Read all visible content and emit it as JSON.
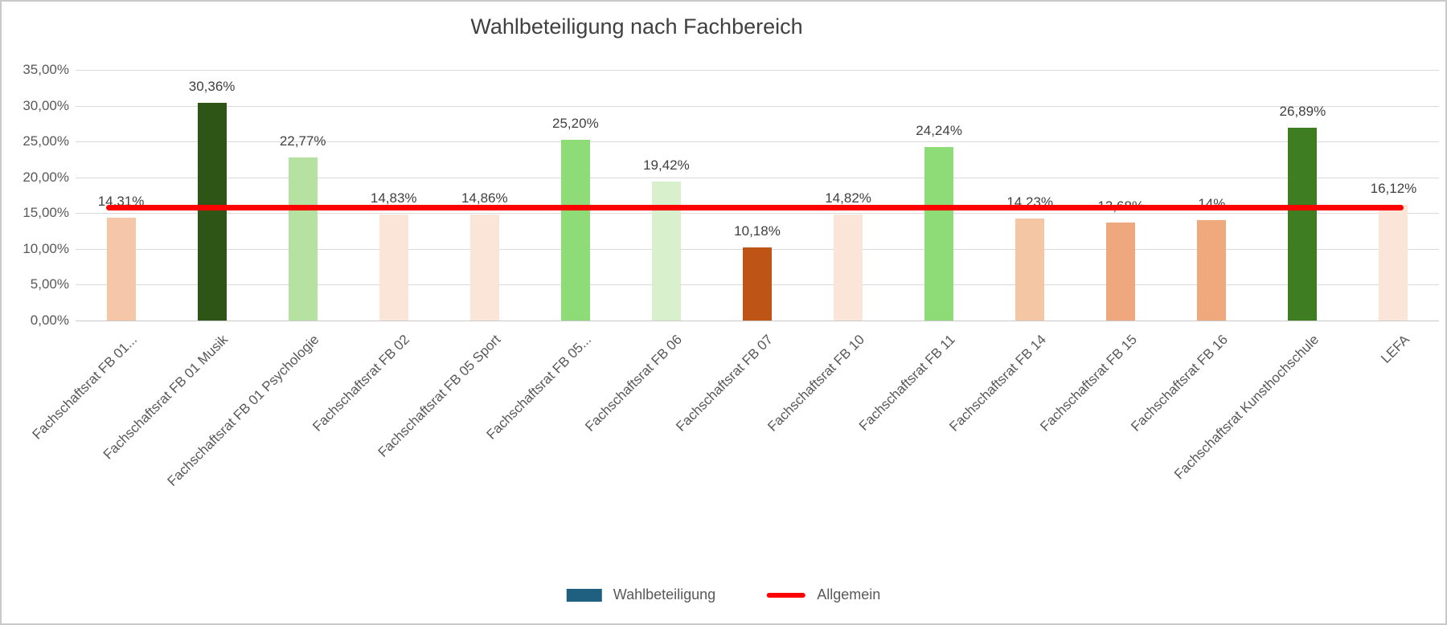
{
  "title": "Wahlbeteiligung nach Fachbereich",
  "y_axis": {
    "min": 0,
    "max": 35,
    "step": 5,
    "tick_labels": [
      "0,00%",
      "5,00%",
      "10,00%",
      "15,00%",
      "20,00%",
      "25,00%",
      "30,00%",
      "35,00%"
    ]
  },
  "legend": {
    "series_label": "Wahlbeteiligung",
    "series_color": "#1f6080",
    "line_label": "Allgemein",
    "line_color": "#ff0000"
  },
  "chart_data": {
    "type": "bar",
    "title": "Wahlbeteiligung nach Fachbereich",
    "categories": [
      "Fachschaftsrat FB 01...",
      "Fachschaftsrat FB 01 Musik",
      "Fachschaftsrat FB 01 Psychologie",
      "Fachschaftsrat FB 02",
      "Fachschaftsrat FB 05 Sport",
      "Fachschaftsrat FB 05...",
      "Fachschaftsrat FB 06",
      "Fachschaftsrat FB 07",
      "Fachschaftsrat FB 10",
      "Fachschaftsrat FB 11",
      "Fachschaftsrat FB 14",
      "Fachschaftsrat FB 15",
      "Fachschaftsrat FB 16",
      "Fachschaftsrat Kunsthochschule",
      "LEFA"
    ],
    "series": [
      {
        "name": "Wahlbeteiligung",
        "values": [
          14.31,
          30.36,
          22.77,
          14.83,
          14.86,
          25.2,
          19.42,
          10.18,
          14.82,
          24.24,
          14.23,
          13.68,
          14.0,
          26.89,
          16.12
        ],
        "labels": [
          "14,31%",
          "30,36%",
          "22,77%",
          "14,83%",
          "14,86%",
          "25,20%",
          "19,42%",
          "10,18%",
          "14,82%",
          "24,24%",
          "14,23%",
          "13,68%",
          "14%",
          "26,89%",
          "16,12%"
        ],
        "bar_colors": [
          "#f6c6a8",
          "#2e5416",
          "#b5e2a0",
          "#fbe5d8",
          "#fbe5d8",
          "#8ddc77",
          "#d9f0cc",
          "#bf5417",
          "#fbe5d8",
          "#8ddc78",
          "#f4c6a4",
          "#efa87d",
          "#f0a87d",
          "#3e7d22",
          "#fbe5d8"
        ]
      },
      {
        "name": "Allgemein",
        "type": "line",
        "value": 15.8,
        "color": "#ff0000"
      }
    ],
    "ylim": [
      0,
      35
    ],
    "grid": true,
    "legend_position": "bottom"
  }
}
